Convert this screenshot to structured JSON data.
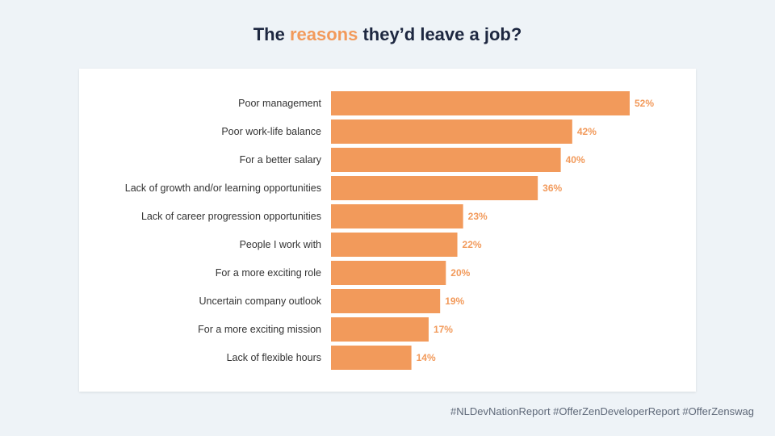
{
  "title": {
    "before": "The ",
    "highlight": "reasons",
    "after": " they’d leave a job?"
  },
  "footer": {
    "hashtags": "#NLDevNationReport #OfferZenDeveloperReport #OfferZenswag"
  },
  "colors": {
    "bar": "#f29a5b",
    "value_label": "#f29a5b",
    "category_label": "#333333"
  },
  "chart_data": {
    "type": "bar",
    "orientation": "horizontal",
    "categories": [
      "Poor management",
      "Poor work-life balance",
      "For a better salary",
      "Lack of growth and/or learning opportunities",
      "Lack of career progression opportunities",
      "People I work with",
      "For a more exciting role",
      "Uncertain company outlook",
      "For a more exciting mission",
      "Lack of flexible hours"
    ],
    "values": [
      52,
      42,
      40,
      36,
      23,
      22,
      20,
      19,
      17,
      14
    ],
    "value_labels": [
      "52%",
      "42%",
      "40%",
      "36%",
      "23%",
      "22%",
      "20%",
      "19%",
      "17%",
      "14%"
    ],
    "xlim": [
      0,
      52
    ],
    "unit": "%",
    "grid": false,
    "legend": false
  }
}
